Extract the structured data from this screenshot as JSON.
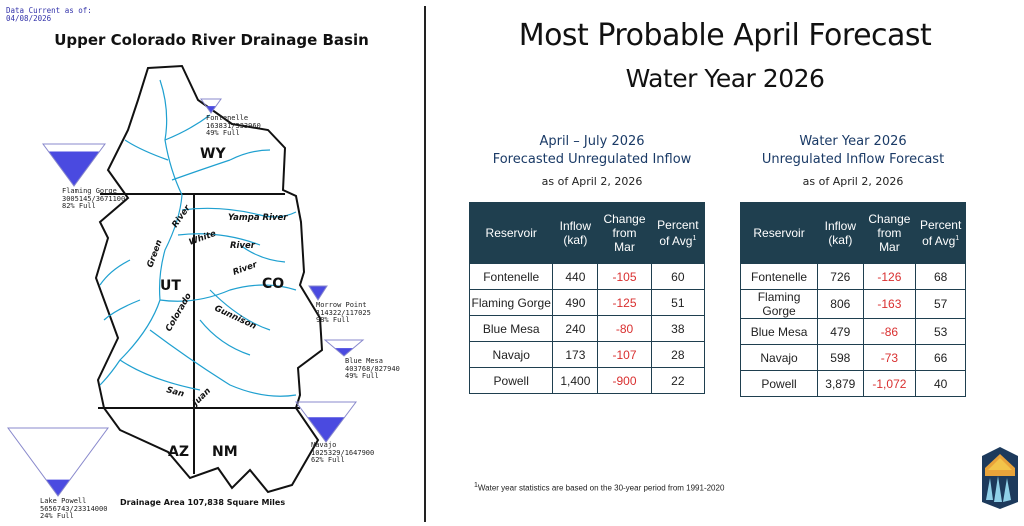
{
  "map": {
    "data_current_label": "Data Current as of:",
    "data_current_date": "04/08/2026",
    "title": "Upper Colorado River Drainage Basin",
    "drainage_area": "Drainage Area 107,838 Square Miles",
    "states": {
      "wy": "WY",
      "ut": "UT",
      "co": "CO",
      "az": "AZ",
      "nm": "NM"
    },
    "rivers": {
      "yampa": "Yampa River",
      "white": "White",
      "white2": "River",
      "green": "Green",
      "green2": "River",
      "river_co": "River",
      "colorado": "Colorado",
      "gunnison": "Gunnison",
      "san": "San",
      "juan": "Juan"
    },
    "reservoirs": [
      {
        "name": "Fontenelle",
        "storage": "163831/333960",
        "full": "49% Full"
      },
      {
        "name": "Flaming Gorge",
        "storage": "3005145/3671100",
        "full": "82% Full"
      },
      {
        "name": "Morrow Point",
        "storage": "114322/117025",
        "full": "98% Full"
      },
      {
        "name": "Blue Mesa",
        "storage": "403768/827940",
        "full": "49% Full"
      },
      {
        "name": "Navajo",
        "storage": "1025329/1647900",
        "full": "62% Full"
      },
      {
        "name": "Lake Powell",
        "storage": "5656743/23314000",
        "full": "24% Full"
      }
    ],
    "colors": {
      "water": "#4a4ae0",
      "river": "#1fa0d0"
    }
  },
  "forecast": {
    "title": "Most Probable April Forecast",
    "subtitle": "Water Year 2026",
    "left_table": {
      "heading1": "April – July 2026",
      "heading2": "Forecasted Unregulated Inflow",
      "as_of": "as of April 2, 2026",
      "columns": [
        "Reservoir",
        "Inflow",
        "(kaf)",
        "Change",
        "from",
        "Mar",
        "Percent",
        "of Avg"
      ],
      "rows": [
        {
          "reservoir": "Fontenelle",
          "inflow": "440",
          "change": "-105",
          "percent": "60"
        },
        {
          "reservoir": "Flaming Gorge",
          "inflow": "490",
          "change": "-125",
          "percent": "51"
        },
        {
          "reservoir": "Blue Mesa",
          "inflow": "240",
          "change": "-80",
          "percent": "38"
        },
        {
          "reservoir": "Navajo",
          "inflow": "173",
          "change": "-107",
          "percent": "28"
        },
        {
          "reservoir": "Powell",
          "inflow": "1,400",
          "change": "-900",
          "percent": "22"
        }
      ]
    },
    "right_table": {
      "heading1": "Water Year 2026",
      "heading2": "Unregulated Inflow Forecast",
      "as_of": "as of April 2, 2026",
      "columns": [
        "Reservoir",
        "Inflow",
        "(kaf)",
        "Change",
        "from",
        "Mar",
        "Percent",
        "of Avg"
      ],
      "rows": [
        {
          "reservoir": "Fontenelle",
          "inflow": "726",
          "change": "-126",
          "percent": "68"
        },
        {
          "reservoir": "Flaming Gorge",
          "inflow": "806",
          "change": "-163",
          "percent": "57"
        },
        {
          "reservoir": "Blue Mesa",
          "inflow": "479",
          "change": "-86",
          "percent": "53"
        },
        {
          "reservoir": "Navajo",
          "inflow": "598",
          "change": "-73",
          "percent": "66"
        },
        {
          "reservoir": "Powell",
          "inflow": "3,879",
          "change": "-1,072",
          "percent": "40"
        }
      ]
    },
    "footnote_mark": "1",
    "footnote": "Water year statistics are based on the 30-year period from 1991-2020",
    "header_color": "#1f3f4f",
    "negative_color": "#d93030"
  }
}
